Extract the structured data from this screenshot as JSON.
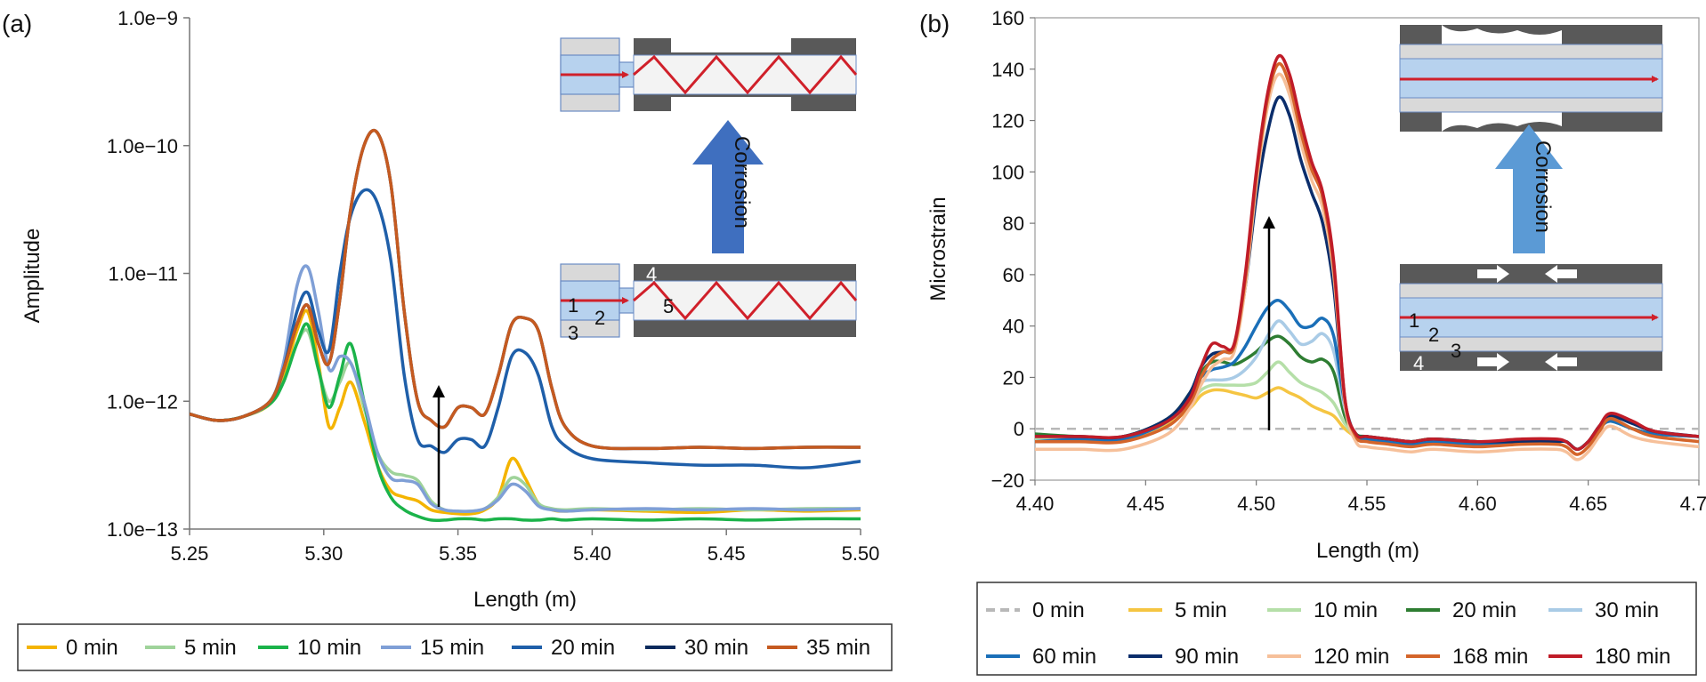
{
  "chart_data": [
    {
      "type": "line",
      "panel_label": "(a)",
      "xlabel": "Length (m)",
      "ylabel": "Amplitude",
      "yscale": "log",
      "xlim": [
        5.25,
        5.5
      ],
      "ylim_log10": [
        -13,
        -9
      ],
      "xticks": [
        5.25,
        5.3,
        5.35,
        5.4,
        5.45,
        5.5
      ],
      "xtick_labels": [
        "5.25",
        "5.30",
        "5.35",
        "5.40",
        "5.45",
        "5.50"
      ],
      "ytick_labels": [
        "1.0e−13",
        "1.0e−12",
        "1.0e−11",
        "1.0e−10",
        "1.0e−9"
      ],
      "x": [
        5.25,
        5.26,
        5.27,
        5.28,
        5.285,
        5.29,
        5.294,
        5.298,
        5.302,
        5.306,
        5.31,
        5.315,
        5.32,
        5.325,
        5.33,
        5.335,
        5.34,
        5.345,
        5.35,
        5.355,
        5.36,
        5.365,
        5.37,
        5.375,
        5.38,
        5.385,
        5.39,
        5.4,
        5.42,
        5.44,
        5.46,
        5.48,
        5.5
      ],
      "series": [
        {
          "name": "0 min",
          "color": "#f4b400",
          "logy": [
            -12.1,
            -12.15,
            -12.12,
            -12.02,
            -11.8,
            -11.45,
            -11.3,
            -11.7,
            -12.2,
            -12.05,
            -11.85,
            -12.15,
            -12.5,
            -12.7,
            -12.75,
            -12.78,
            -12.85,
            -12.87,
            -12.88,
            -12.88,
            -12.85,
            -12.75,
            -12.45,
            -12.6,
            -12.8,
            -12.85,
            -12.86,
            -12.85,
            -12.86,
            -12.87,
            -12.85,
            -12.86,
            -12.85
          ]
        },
        {
          "name": "5 min",
          "color": "#9fd39a",
          "logy": [
            -12.1,
            -12.15,
            -12.12,
            -12.02,
            -11.85,
            -11.55,
            -11.45,
            -11.75,
            -12.0,
            -11.85,
            -11.7,
            -12.05,
            -12.4,
            -12.55,
            -12.58,
            -12.62,
            -12.78,
            -12.85,
            -12.86,
            -12.86,
            -12.84,
            -12.75,
            -12.6,
            -12.65,
            -12.8,
            -12.84,
            -12.85,
            -12.84,
            -12.85,
            -12.84,
            -12.85,
            -12.84,
            -12.84
          ]
        },
        {
          "name": "10 min",
          "color": "#1bb34a",
          "logy": [
            -12.1,
            -12.15,
            -12.12,
            -12.02,
            -11.85,
            -11.55,
            -11.4,
            -11.75,
            -12.05,
            -11.8,
            -11.55,
            -12.0,
            -12.5,
            -12.75,
            -12.85,
            -12.9,
            -12.93,
            -12.93,
            -12.92,
            -12.92,
            -12.93,
            -12.92,
            -12.92,
            -12.93,
            -12.93,
            -12.92,
            -12.93,
            -12.92,
            -12.93,
            -12.92,
            -12.93,
            -12.92,
            -12.92
          ]
        },
        {
          "name": "15 min",
          "color": "#7f9fd6",
          "logy": [
            -12.1,
            -12.15,
            -12.12,
            -12.0,
            -11.7,
            -11.1,
            -10.95,
            -11.3,
            -11.75,
            -11.65,
            -11.7,
            -12.0,
            -12.4,
            -12.6,
            -12.62,
            -12.65,
            -12.8,
            -12.85,
            -12.86,
            -12.86,
            -12.84,
            -12.77,
            -12.65,
            -12.7,
            -12.82,
            -12.85,
            -12.86,
            -12.85,
            -12.84,
            -12.85,
            -12.84,
            -12.85,
            -12.84
          ]
        },
        {
          "name": "20 min",
          "color": "#1f5fa9",
          "logy": [
            -12.1,
            -12.15,
            -12.12,
            -12.0,
            -11.75,
            -11.3,
            -11.15,
            -11.45,
            -11.6,
            -11.0,
            -10.55,
            -10.35,
            -10.45,
            -10.9,
            -11.8,
            -12.3,
            -12.35,
            -12.4,
            -12.3,
            -12.3,
            -12.35,
            -12.05,
            -11.65,
            -11.62,
            -11.8,
            -12.2,
            -12.35,
            -12.45,
            -12.48,
            -12.5,
            -12.5,
            -12.52,
            -12.47
          ]
        },
        {
          "name": "30 min",
          "color": "#0b2a5c",
          "logy": [
            -12.1,
            -12.15,
            -12.12,
            -12.0,
            -11.75,
            -11.4,
            -11.25,
            -11.55,
            -11.7,
            -11.2,
            -10.5,
            -10.0,
            -9.9,
            -10.3,
            -11.3,
            -12.0,
            -12.15,
            -12.2,
            -12.05,
            -12.05,
            -12.1,
            -11.8,
            -11.4,
            -11.35,
            -11.45,
            -11.9,
            -12.2,
            -12.35,
            -12.37,
            -12.36,
            -12.37,
            -12.36,
            -12.36
          ]
        },
        {
          "name": "35 min",
          "color": "#c55a20",
          "logy": [
            -12.1,
            -12.15,
            -12.12,
            -12.0,
            -11.75,
            -11.4,
            -11.25,
            -11.55,
            -11.7,
            -11.2,
            -10.5,
            -10.0,
            -9.9,
            -10.3,
            -11.3,
            -12.0,
            -12.15,
            -12.2,
            -12.05,
            -12.05,
            -12.1,
            -11.8,
            -11.4,
            -11.35,
            -11.45,
            -11.9,
            -12.2,
            -12.35,
            -12.37,
            -12.36,
            -12.37,
            -12.36,
            -12.36
          ]
        }
      ],
      "inset_labels": [
        "1",
        "2",
        "3",
        "4",
        "5"
      ],
      "inset_arrow_text": "Corrosion"
    },
    {
      "type": "line",
      "panel_label": "(b)",
      "xlabel": "Length (m)",
      "ylabel": "Microstrain",
      "xlim": [
        4.4,
        4.7
      ],
      "ylim": [
        -20,
        160
      ],
      "xticks": [
        4.4,
        4.45,
        4.5,
        4.55,
        4.6,
        4.65,
        4.7
      ],
      "xtick_labels": [
        "4.40",
        "4.45",
        "4.50",
        "4.55",
        "4.60",
        "4.65",
        "4.70"
      ],
      "yticks": [
        -20,
        0,
        20,
        40,
        60,
        80,
        100,
        120,
        140,
        160
      ],
      "ytick_labels": [
        "−20",
        "0",
        "20",
        "40",
        "60",
        "80",
        "100",
        "120",
        "140",
        "160"
      ],
      "x": [
        4.4,
        4.42,
        4.44,
        4.46,
        4.47,
        4.475,
        4.48,
        4.485,
        4.49,
        4.495,
        4.5,
        4.505,
        4.51,
        4.515,
        4.52,
        4.525,
        4.53,
        4.535,
        4.54,
        4.545,
        4.55,
        4.56,
        4.57,
        4.58,
        4.6,
        4.62,
        4.635,
        4.64,
        4.645,
        4.65,
        4.655,
        4.66,
        4.67,
        4.68,
        4.7
      ],
      "series": [
        {
          "name": "0 min",
          "color": "#b8b8b8",
          "dashed": true,
          "values": [
            0,
            0,
            0,
            0,
            0,
            0,
            0,
            0,
            0,
            0,
            0,
            0,
            0,
            0,
            0,
            0,
            0,
            0,
            0,
            0,
            0,
            0,
            0,
            0,
            0,
            0,
            0,
            0,
            0,
            0,
            0,
            0,
            0,
            0,
            0
          ]
        },
        {
          "name": "5 min",
          "color": "#f5c542",
          "values": [
            -4,
            -4,
            -4,
            2,
            8,
            13,
            15,
            15,
            14,
            13,
            12,
            14,
            16,
            14,
            12,
            9,
            7,
            5,
            0,
            -3,
            -4,
            -5,
            -5,
            -4,
            -5,
            -5,
            -5,
            -5,
            -8,
            -5,
            0,
            3,
            0,
            -2,
            -3
          ]
        },
        {
          "name": "10 min",
          "color": "#b5dfa8",
          "values": [
            -4,
            -4,
            -4,
            3,
            10,
            15,
            17,
            17,
            17,
            17,
            18,
            22,
            26,
            22,
            18,
            16,
            14,
            10,
            2,
            -3,
            -4,
            -5,
            -5,
            -4,
            -5,
            -5,
            -5,
            -5,
            -8,
            -5,
            0,
            3,
            0,
            -2,
            -3
          ]
        },
        {
          "name": "20 min",
          "color": "#2e7d32",
          "values": [
            -2,
            -3,
            -3,
            4,
            14,
            22,
            26,
            26,
            25,
            27,
            30,
            34,
            36,
            33,
            28,
            26,
            27,
            22,
            5,
            -2,
            -3,
            -4,
            -5,
            -4,
            -5,
            -5,
            -5,
            -5,
            -8,
            -5,
            0,
            3,
            0,
            -2,
            -3
          ]
        },
        {
          "name": "30 min",
          "color": "#a9cbe6",
          "values": [
            -5,
            -4,
            -4,
            3,
            12,
            18,
            19,
            19,
            20,
            23,
            28,
            36,
            42,
            38,
            33,
            34,
            37,
            30,
            8,
            -3,
            -4,
            -5,
            -6,
            -5,
            -6,
            -5,
            -5,
            -5,
            -8,
            -5,
            0,
            3,
            0,
            -2,
            -3
          ]
        },
        {
          "name": "60 min",
          "color": "#1a6fb8",
          "values": [
            -5,
            -4,
            -4,
            3,
            13,
            20,
            23,
            24,
            26,
            32,
            40,
            47,
            50,
            46,
            40,
            40,
            43,
            36,
            10,
            -3,
            -4,
            -5,
            -6,
            -5,
            -6,
            -5,
            -5,
            -5,
            -8,
            -5,
            0,
            3,
            0,
            -2,
            -3
          ]
        },
        {
          "name": "90 min",
          "color": "#0b2d6b",
          "values": [
            -3,
            -3,
            -3,
            4,
            14,
            24,
            29,
            30,
            32,
            55,
            90,
            115,
            129,
            122,
            105,
            92,
            80,
            55,
            10,
            -2,
            -3,
            -4,
            -5,
            -4,
            -5,
            -5,
            -5,
            -5,
            -8,
            -5,
            1,
            5,
            2,
            -1,
            -3
          ]
        },
        {
          "name": "120 min",
          "color": "#f6c09a",
          "values": [
            -8,
            -8,
            -8,
            -2,
            8,
            17,
            24,
            27,
            30,
            55,
            95,
            125,
            138,
            130,
            112,
            97,
            86,
            60,
            10,
            -5,
            -7,
            -8,
            -9,
            -8,
            -9,
            -8,
            -8,
            -9,
            -12,
            -9,
            -3,
            1,
            -3,
            -5,
            -7
          ]
        },
        {
          "name": "168 min",
          "color": "#d4652a",
          "values": [
            -5,
            -5,
            -5,
            1,
            10,
            20,
            27,
            30,
            32,
            58,
            98,
            128,
            142,
            134,
            116,
            101,
            90,
            63,
            12,
            -3,
            -5,
            -6,
            -7,
            -6,
            -7,
            -6,
            -6,
            -7,
            -10,
            -7,
            -1,
            4,
            0,
            -3,
            -5
          ]
        },
        {
          "name": "180 min",
          "color": "#c01c28",
          "values": [
            -3,
            -3,
            -3,
            3,
            12,
            24,
            33,
            32,
            33,
            60,
            100,
            130,
            145,
            138,
            120,
            104,
            92,
            65,
            12,
            -2,
            -3,
            -4,
            -5,
            -4,
            -5,
            -4,
            -4,
            -5,
            -8,
            -5,
            1,
            6,
            3,
            -1,
            -3
          ]
        }
      ],
      "inset_labels": [
        "1",
        "2",
        "3",
        "4"
      ],
      "inset_arrow_text": "Corrosion"
    }
  ]
}
